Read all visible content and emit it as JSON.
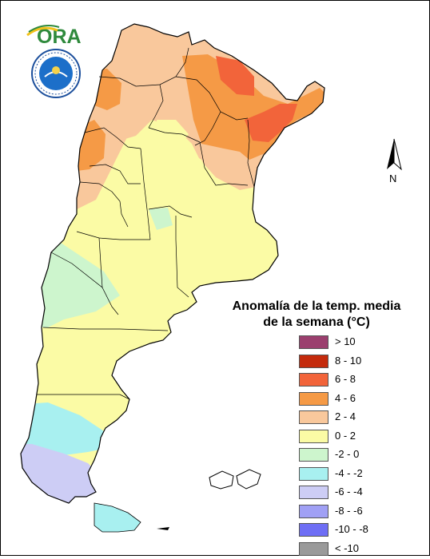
{
  "logos": {
    "ora": "ORA",
    "smn": "SERVICIO METEOROLOGICO NACIONAL ARGENTINA"
  },
  "north_arrow": {
    "letter": "N"
  },
  "legend": {
    "title_line1": "Anomalía de la temp. media",
    "title_line2": "de la semana (°C)",
    "classes": [
      {
        "label": "> 10",
        "color": "#9b3f6e"
      },
      {
        "label": "8 - 10",
        "color": "#c42a0c"
      },
      {
        "label": "6 - 8",
        "color": "#f2643a"
      },
      {
        "label": "4 - 6",
        "color": "#f59a46"
      },
      {
        "label": "2 - 4",
        "color": "#f9c89c"
      },
      {
        "label": "0 - 2",
        "color": "#fbfba5"
      },
      {
        "label": "-2 - 0",
        "color": "#cdf5cd"
      },
      {
        "label": "-4 - -2",
        "color": "#a8f0f0"
      },
      {
        "label": "-6 - -4",
        "color": "#cdcdf5"
      },
      {
        "label": "-8 - -6",
        "color": "#a0a0f5"
      },
      {
        "label": "-10 - -8",
        "color": "#6e6ef5"
      },
      {
        "label": "< -10",
        "color": "#9a9a9a"
      }
    ]
  }
}
